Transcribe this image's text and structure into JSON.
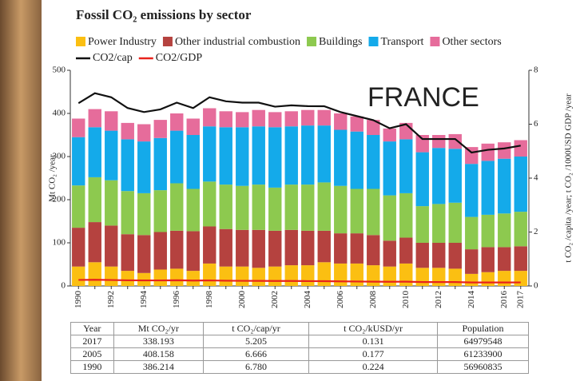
{
  "chart_data": {
    "type": "bar",
    "stacked": true,
    "title": "Fossil CO₂ emissions by sector",
    "annotation": "FRANCE",
    "ylabel": "Mt CO₂ /year",
    "y2label": "t CO₂ /capita /year; t CO₂ /1000USD GDP /year",
    "categories": [
      "1990",
      null,
      "1992",
      null,
      "1994",
      null,
      "1996",
      null,
      "1998",
      null,
      "2000",
      null,
      "2002",
      null,
      "2004",
      null,
      "2006",
      null,
      "2008",
      null,
      "2010",
      null,
      "2012",
      null,
      "2014",
      null,
      "2016",
      "2017"
    ],
    "ylim": [
      0,
      500
    ],
    "yticks": [
      0,
      100,
      200,
      300,
      400,
      500
    ],
    "y2lim": [
      0,
      8
    ],
    "y2ticks": [
      0,
      2,
      4,
      6,
      8
    ],
    "grid": false,
    "series": [
      {
        "name": "Power Industry",
        "color": "#fbbf12",
        "values": [
          45,
          55,
          45,
          35,
          30,
          38,
          40,
          35,
          52,
          45,
          45,
          42,
          45,
          48,
          48,
          55,
          52,
          52,
          48,
          45,
          52,
          42,
          42,
          40,
          28,
          32,
          35,
          35
        ]
      },
      {
        "name": "Other industrial combustion",
        "color": "#b5423f",
        "values": [
          90,
          93,
          95,
          85,
          88,
          87,
          88,
          92,
          86,
          87,
          85,
          88,
          83,
          82,
          80,
          73,
          70,
          70,
          70,
          60,
          60,
          58,
          58,
          60,
          57,
          58,
          55,
          57
        ]
      },
      {
        "name": "Buildings",
        "color": "#8dc94f",
        "values": [
          98,
          104,
          105,
          100,
          97,
          97,
          110,
          98,
          104,
          103,
          102,
          105,
          100,
          105,
          107,
          112,
          110,
          103,
          107,
          105,
          103,
          85,
          90,
          93,
          75,
          75,
          78,
          80
        ]
      },
      {
        "name": "Transport",
        "color": "#14aaea",
        "values": [
          112,
          116,
          115,
          120,
          120,
          121,
          122,
          125,
          128,
          133,
          136,
          135,
          140,
          135,
          137,
          132,
          130,
          133,
          125,
          125,
          125,
          125,
          130,
          125,
          123,
          125,
          127,
          128
        ]
      },
      {
        "name": "Other sectors",
        "color": "#e66c9b",
        "values": [
          43,
          42,
          45,
          38,
          40,
          42,
          40,
          38,
          42,
          37,
          35,
          38,
          35,
          35,
          36,
          36,
          38,
          35,
          35,
          30,
          38,
          40,
          30,
          34,
          39,
          40,
          38,
          38
        ]
      },
      {
        "name": "CO2/cap",
        "type": "line",
        "axis": "y2",
        "color": "#111111",
        "values": [
          6.78,
          7.15,
          7.0,
          6.6,
          6.45,
          6.55,
          6.8,
          6.6,
          7.0,
          6.85,
          6.8,
          6.8,
          6.65,
          6.7,
          6.67,
          6.666,
          6.45,
          6.3,
          6.15,
          5.85,
          6.0,
          5.45,
          5.45,
          5.45,
          4.95,
          5.05,
          5.1,
          5.205
        ]
      },
      {
        "name": "CO2/GDP",
        "type": "line",
        "axis": "y2",
        "color": "#e8231c",
        "values": [
          0.224,
          0.23,
          0.22,
          0.21,
          0.205,
          0.205,
          0.21,
          0.2,
          0.205,
          0.195,
          0.19,
          0.19,
          0.185,
          0.185,
          0.18,
          0.177,
          0.17,
          0.165,
          0.16,
          0.155,
          0.16,
          0.145,
          0.145,
          0.145,
          0.13,
          0.13,
          0.13,
          0.131
        ]
      }
    ]
  },
  "table": {
    "header": [
      "Year",
      "Mt CO₂/yr",
      "t CO₂/cap/yr",
      "t CO₂/kUSD/yr",
      "Population"
    ],
    "rows": [
      [
        "2017",
        "338.193",
        "5.205",
        "0.131",
        "64979548"
      ],
      [
        "2005",
        "408.158",
        "6.666",
        "0.177",
        "61233900"
      ],
      [
        "1990",
        "386.214",
        "6.780",
        "0.224",
        "56960835"
      ]
    ]
  }
}
